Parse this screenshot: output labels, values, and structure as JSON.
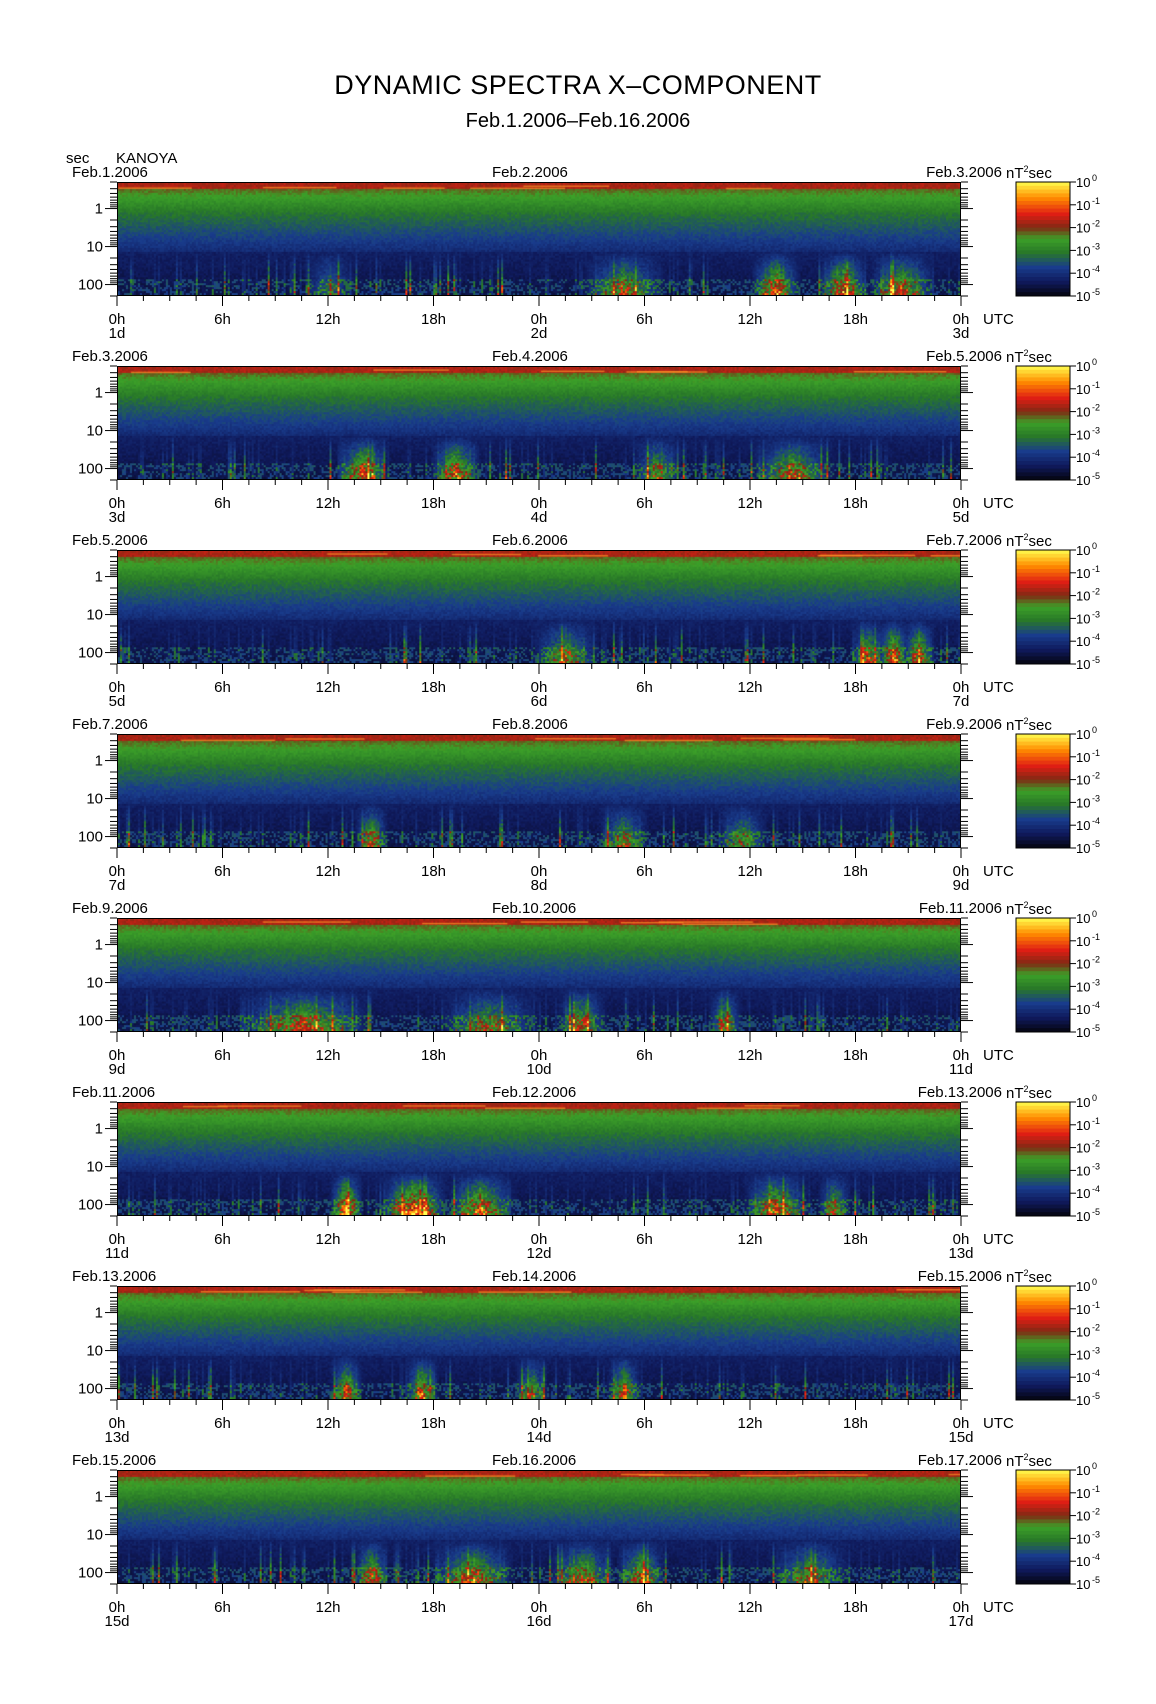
{
  "title": "DYNAMIC SPECTRA X–COMPONENT",
  "subtitle": "Feb.1.2006–Feb.16.2006",
  "unit_sec": "sec",
  "station": "KANOYA",
  "colors": {
    "black": "#000000",
    "deep_blue": "#0a1a60",
    "blue": "#1a3a8a",
    "green": "#2a9a2a",
    "dark_red": "#8a2a10",
    "red": "#e02020",
    "orange": "#ff8000",
    "yellow": "#ffff40"
  },
  "chart_data": {
    "type": "heatmap",
    "y_axis": {
      "label": "sec",
      "scale": "log",
      "ticks": [
        "1",
        "10",
        "100"
      ],
      "inverted": true
    },
    "x_axis": {
      "unit": "UTC",
      "ticks": [
        "0h",
        "6h",
        "12h",
        "18h",
        "0h",
        "6h",
        "12h",
        "18h",
        "0h"
      ]
    },
    "colorbar": {
      "unit": "nT²sec",
      "base": "10",
      "exponents": [
        "0",
        "-1",
        "-2",
        "-3",
        "-4",
        "-5"
      ],
      "scale": "log"
    },
    "panels": [
      {
        "date_left": "Feb.1.2006",
        "date_mid": "Feb.2.2006",
        "date_right": "Feb.3.2006",
        "day_labels": [
          "1d",
          "2d",
          "3d"
        ],
        "events": [
          [
            0.6,
            0.05,
            0.6
          ],
          [
            0.78,
            0.03,
            0.75
          ],
          [
            0.86,
            0.03,
            0.8
          ],
          [
            0.93,
            0.04,
            0.7
          ],
          [
            0.25,
            0.03,
            0.4
          ]
        ]
      },
      {
        "date_left": "Feb.3.2006",
        "date_mid": "Feb.4.2006",
        "date_right": "Feb.5.2006",
        "day_labels": [
          "3d",
          "4d",
          "5d"
        ],
        "events": [
          [
            0.29,
            0.03,
            0.8
          ],
          [
            0.4,
            0.03,
            0.8
          ],
          [
            0.64,
            0.03,
            0.55
          ],
          [
            0.8,
            0.05,
            0.65
          ]
        ]
      },
      {
        "date_left": "Feb.5.2006",
        "date_mid": "Feb.6.2006",
        "date_right": "Feb.7.2006",
        "day_labels": [
          "5d",
          "6d",
          "7d"
        ],
        "events": [
          [
            0.53,
            0.04,
            0.6
          ],
          [
            0.89,
            0.02,
            0.7
          ],
          [
            0.92,
            0.02,
            0.85
          ],
          [
            0.95,
            0.02,
            0.8
          ]
        ]
      },
      {
        "date_left": "Feb.7.2006",
        "date_mid": "Feb.8.2006",
        "date_right": "Feb.9.2006",
        "day_labels": [
          "7d",
          "8d",
          "9d"
        ],
        "events": [
          [
            0.3,
            0.02,
            0.7
          ],
          [
            0.6,
            0.03,
            0.6
          ],
          [
            0.74,
            0.03,
            0.55
          ]
        ]
      },
      {
        "date_left": "Feb.9.2006",
        "date_mid": "Feb.10.2006",
        "date_right": "Feb.11.2006",
        "day_labels": [
          "9d",
          "10d",
          "11d"
        ],
        "events": [
          [
            0.22,
            0.08,
            0.7
          ],
          [
            0.44,
            0.06,
            0.55
          ],
          [
            0.55,
            0.03,
            0.6
          ],
          [
            0.72,
            0.02,
            0.6
          ]
        ]
      },
      {
        "date_left": "Feb.11.2006",
        "date_mid": "Feb.12.2006",
        "date_right": "Feb.13.2006",
        "day_labels": [
          "11d",
          "12d",
          "13d"
        ],
        "events": [
          [
            0.27,
            0.02,
            0.9
          ],
          [
            0.35,
            0.04,
            0.95
          ],
          [
            0.43,
            0.04,
            0.8
          ],
          [
            0.78,
            0.04,
            0.7
          ],
          [
            0.85,
            0.02,
            0.6
          ]
        ]
      },
      {
        "date_left": "Feb.13.2006",
        "date_mid": "Feb.14.2006",
        "date_right": "Feb.15.2006",
        "day_labels": [
          "13d",
          "14d",
          "15d"
        ],
        "events": [
          [
            0.27,
            0.02,
            0.75
          ],
          [
            0.36,
            0.02,
            0.75
          ],
          [
            0.49,
            0.02,
            0.55
          ],
          [
            0.6,
            0.02,
            0.7
          ]
        ]
      },
      {
        "date_left": "Feb.15.2006",
        "date_mid": "Feb.16.2006",
        "date_right": "Feb.17.2006",
        "day_labels": [
          "15d",
          "16d",
          "17d"
        ],
        "events": [
          [
            0.3,
            0.02,
            0.75
          ],
          [
            0.42,
            0.05,
            0.7
          ],
          [
            0.55,
            0.04,
            0.65
          ],
          [
            0.62,
            0.03,
            0.7
          ],
          [
            0.82,
            0.05,
            0.55
          ]
        ]
      }
    ]
  }
}
